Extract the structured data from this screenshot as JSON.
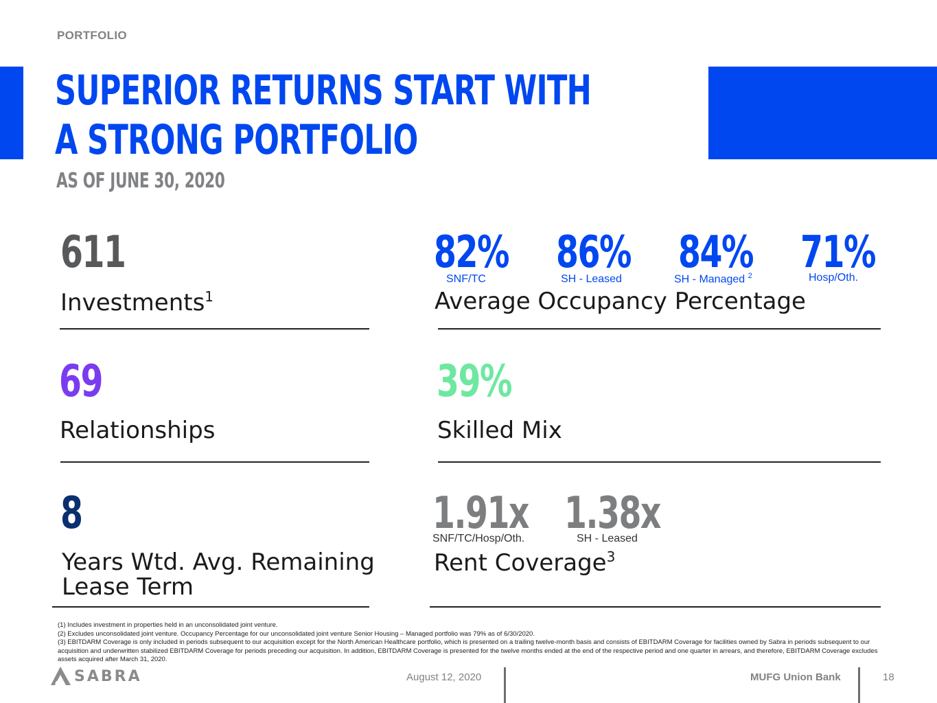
{
  "header": {
    "section": "PORTFOLIO",
    "title_line1": "SUPERIOR RETURNS START WITH",
    "title_line2": "A STRONG PORTFOLIO",
    "subtitle": "AS OF JUNE 30, 2020",
    "accent_color": "#0047f0"
  },
  "metrics": {
    "investments": {
      "value": "611",
      "label": "Investments",
      "footnote_ref": "1"
    },
    "occupancy": {
      "label": "Average Occupancy Percentage",
      "items": [
        {
          "value": "82%",
          "label": "SNF/TC"
        },
        {
          "value": "86%",
          "label": "SH - Leased"
        },
        {
          "value": "84%",
          "label": "SH - Managed",
          "footnote_ref": "2"
        },
        {
          "value": "71%",
          "label": "Hosp/Oth."
        }
      ]
    },
    "relationships": {
      "value": "69",
      "label": "Relationships",
      "color": "#7a3cf0"
    },
    "skilled_mix": {
      "value": "39%",
      "label": "Skilled Mix",
      "color": "#6ee8a0"
    },
    "lease_term": {
      "value": "8",
      "label_line1": "Years Wtd. Avg. Remaining",
      "label_line2": "Lease Term",
      "color": "#0a2f6e"
    },
    "rent_coverage": {
      "label": "Rent Coverage",
      "footnote_ref": "3",
      "items": [
        {
          "value": "1.91x",
          "label": "SNF/TC/Hosp/Oth."
        },
        {
          "value": "1.38x",
          "label": "SH - Leased"
        }
      ]
    }
  },
  "footnotes": [
    "(1) Includes investment in properties held in an unconsolidated joint venture.",
    "(2) Excludes unconsolidated joint venture.  Occupancy Percentage for our unconsolidated joint venture Senior Housing – Managed portfolio was 79% as of 6/30/2020.",
    "(3) EBITDARM Coverage is only included in periods subsequent to our acquisition except for the North American Healthcare portfolio, which is presented on a trailing twelve-month basis and consists of EBITDARM Coverage for facilities owned by Sabra in periods subsequent to our acquisition and underwritten stabilized EBITDARM Coverage for periods preceding our acquisition. In addition, EBITDARM Coverage is presented for the twelve months ended at the end of the respective period and one quarter in arrears, and therefore, EBITDARM Coverage excludes assets acquired after March 31, 2020."
  ],
  "footer": {
    "logo": "SABRA",
    "date": "August 12, 2020",
    "bank": "MUFG Union Bank",
    "page": "18"
  }
}
